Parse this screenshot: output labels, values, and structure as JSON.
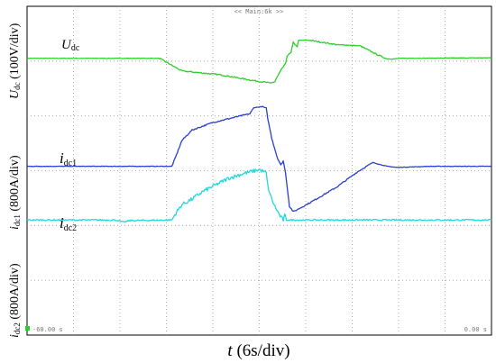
{
  "chart_data": {
    "type": "line",
    "top_tag": "<< Main:6k >>",
    "start_time_label": "-60.00 s",
    "end_time_label": "0.00 s",
    "xlabel": {
      "var": "t",
      "unit": " (6s/div)"
    },
    "xlim": [
      -60,
      0
    ],
    "ylim": [
      0,
      6
    ],
    "y_axis_labels": [
      {
        "main": "U",
        "sub": "dc",
        "unit": " (100V/div)"
      },
      {
        "main": "i",
        "sub": "dc1",
        "unit": " (800A/div)"
      },
      {
        "main": "i",
        "sub": "dc2",
        "unit": " (800A/div)"
      }
    ],
    "series": [
      {
        "name": {
          "main": "U",
          "sub": "dc"
        },
        "color": "#2ad02a",
        "noise": 0.007,
        "points": [
          [
            -60,
            5.05
          ],
          [
            -42.9,
            5.05
          ],
          [
            -41,
            4.9
          ],
          [
            -40,
            4.82
          ],
          [
            -35,
            4.75
          ],
          [
            -31,
            4.65
          ],
          [
            -28.6,
            4.6
          ],
          [
            -28,
            4.62
          ],
          [
            -27.8,
            4.68
          ],
          [
            -27,
            4.88
          ],
          [
            -26.6,
            4.95
          ],
          [
            -26.4,
            5.1
          ],
          [
            -25.9,
            5.15
          ],
          [
            -25.6,
            5.35
          ],
          [
            -25.4,
            5.3
          ],
          [
            -25.1,
            5.27
          ],
          [
            -24.9,
            5.38
          ],
          [
            -23.5,
            5.38
          ],
          [
            -20,
            5.3
          ],
          [
            -17,
            5.28
          ],
          [
            -14.8,
            5.12
          ],
          [
            -13.5,
            5.04
          ],
          [
            -12.5,
            5.04
          ],
          [
            -11.8,
            5.05
          ],
          [
            -0.5,
            5.06
          ],
          [
            0,
            5.06
          ]
        ]
      },
      {
        "name": {
          "main": "i",
          "sub": "dc1"
        },
        "color": "#2a3ed0",
        "noise": 0.007,
        "points": [
          [
            -60,
            3.08
          ],
          [
            -41.3,
            3.08
          ],
          [
            -40.8,
            3.25
          ],
          [
            -40,
            3.55
          ],
          [
            -38.7,
            3.74
          ],
          [
            -36,
            3.88
          ],
          [
            -33,
            3.98
          ],
          [
            -31.2,
            4.04
          ],
          [
            -30.7,
            4.15
          ],
          [
            -29.6,
            4.17
          ],
          [
            -29.1,
            4.14
          ],
          [
            -28.9,
            3.95
          ],
          [
            -28.4,
            3.6
          ],
          [
            -27.7,
            3.25
          ],
          [
            -27.2,
            3.1
          ],
          [
            -26.9,
            3.18
          ],
          [
            -26.6,
            2.95
          ],
          [
            -26.1,
            2.35
          ],
          [
            -25.6,
            2.25
          ],
          [
            -23.4,
            2.42
          ],
          [
            -20,
            2.7
          ],
          [
            -17.3,
            2.98
          ],
          [
            -15.3,
            3.15
          ],
          [
            -14.6,
            3.12
          ],
          [
            -13.5,
            3.08
          ],
          [
            -12.2,
            3.06
          ],
          [
            -8,
            3.08
          ],
          [
            -0.5,
            3.08
          ],
          [
            0,
            3.08
          ]
        ]
      },
      {
        "name": {
          "main": "i",
          "sub": "dc2"
        },
        "color": "#22d8dc",
        "noise": 0.022,
        "points": [
          [
            -60,
            2.1
          ],
          [
            -48.5,
            2.1
          ],
          [
            -47.6,
            2.06
          ],
          [
            -46.7,
            2.09
          ],
          [
            -41.3,
            2.1
          ],
          [
            -40.8,
            2.22
          ],
          [
            -40,
            2.38
          ],
          [
            -38.7,
            2.48
          ],
          [
            -37.3,
            2.62
          ],
          [
            -35.5,
            2.75
          ],
          [
            -34,
            2.86
          ],
          [
            -32,
            2.95
          ],
          [
            -30,
            3.02
          ],
          [
            -29.1,
            2.96
          ],
          [
            -28.9,
            2.72
          ],
          [
            -28.5,
            2.52
          ],
          [
            -28,
            2.35
          ],
          [
            -27.3,
            2.17
          ],
          [
            -26.9,
            2.1
          ],
          [
            -26.7,
            2.18
          ],
          [
            -26.5,
            2.1
          ],
          [
            -26,
            2.1
          ],
          [
            -17,
            2.1
          ],
          [
            -0.5,
            2.1
          ],
          [
            0,
            2.1
          ]
        ]
      }
    ]
  }
}
